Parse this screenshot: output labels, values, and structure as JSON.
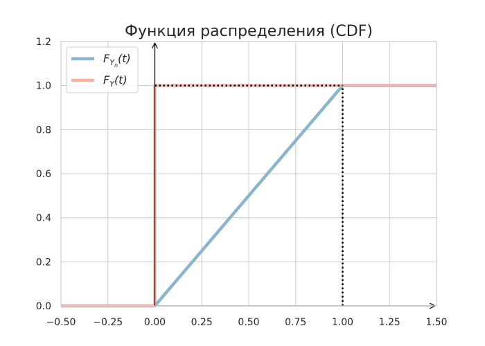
{
  "chart_data": {
    "type": "line",
    "title": "Функция распределения (CDF)",
    "xlabel": "",
    "ylabel": "",
    "xlim": [
      -0.5,
      1.5
    ],
    "ylim": [
      0.0,
      1.2
    ],
    "grid": true,
    "legend_position": "top-left",
    "x_ticks": [
      -0.5,
      -0.25,
      0.0,
      0.25,
      0.5,
      0.75,
      1.0,
      1.25,
      1.5
    ],
    "x_tick_labels": [
      "−0.50",
      "−0.25",
      "0.00",
      "0.25",
      "0.50",
      "0.75",
      "1.00",
      "1.25",
      "1.50"
    ],
    "y_ticks": [
      0.0,
      0.2,
      0.4,
      0.6,
      0.8,
      1.0,
      1.2
    ],
    "y_tick_labels": [
      "0.0",
      "0.2",
      "0.4",
      "0.6",
      "0.8",
      "1.0",
      "1.2"
    ],
    "series": [
      {
        "name": "F_{Y_n}(t)",
        "legend_main": "F",
        "legend_sub": "Y",
        "legend_subsub": "n",
        "legend_tail": "(t)",
        "color": "#8ab5cc",
        "x": [
          -0.5,
          0.0,
          1.0,
          1.5
        ],
        "y": [
          0.0,
          0.0,
          1.0,
          1.0
        ]
      },
      {
        "name": "F_Y(t)",
        "legend_main": "F",
        "legend_sub": "Y",
        "legend_tail": "(t)",
        "color": "#fbb0a3",
        "x": [
          -0.5,
          0.0,
          0.0,
          1.5
        ],
        "y": [
          0.0,
          0.0,
          1.0,
          1.0
        ]
      }
    ],
    "reference_lines": [
      {
        "x": [
          0.0,
          1.0
        ],
        "y": [
          1.0,
          1.0
        ],
        "style": "dotted",
        "color": "#000000"
      },
      {
        "x": [
          1.0,
          1.0
        ],
        "y": [
          0.0,
          1.0
        ],
        "style": "dotted",
        "color": "#000000"
      }
    ],
    "axis_arrows": [
      {
        "x": [
          0.0,
          0.0
        ],
        "y": [
          0.0,
          1.2
        ]
      },
      {
        "x": [
          0.0,
          1.5
        ],
        "y": [
          0.0,
          0.0
        ]
      }
    ]
  }
}
